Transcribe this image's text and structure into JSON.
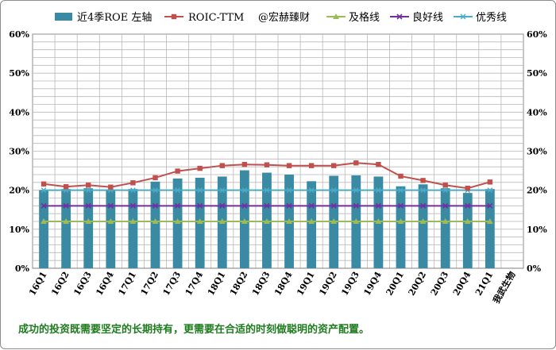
{
  "chart_data": {
    "type": "bar",
    "categories": [
      "16Q1",
      "16Q2",
      "16Q3",
      "16Q4",
      "17Q1",
      "17Q2",
      "17Q3",
      "17Q4",
      "18Q1",
      "18Q2",
      "18Q3",
      "18Q4",
      "19Q1",
      "19Q2",
      "19Q3",
      "19Q4",
      "20Q1",
      "20Q2",
      "20Q3",
      "20Q4",
      "21Q1"
    ],
    "series": [
      {
        "name": "近4季ROE 左轴",
        "kind": "bar",
        "color": "#3a8aa4",
        "values": [
          20.0,
          20.3,
          20.5,
          20.2,
          20.3,
          22.2,
          23.0,
          23.2,
          23.5,
          25.1,
          24.5,
          24.0,
          22.3,
          23.7,
          23.8,
          23.5,
          21.0,
          21.5,
          20.5,
          19.3,
          20.3
        ]
      },
      {
        "name": "ROIC-TTM",
        "kind": "line",
        "color": "#c0504d",
        "marker": "square",
        "values": [
          21.6,
          20.9,
          21.3,
          20.8,
          21.9,
          23.2,
          24.9,
          25.6,
          26.3,
          26.6,
          26.5,
          26.3,
          26.3,
          26.3,
          27.0,
          26.6,
          23.6,
          22.5,
          21.3,
          20.5,
          22.1
        ]
      },
      {
        "name": "及格线",
        "kind": "line",
        "color": "#9bbb59",
        "marker": "triangle",
        "values": [
          12,
          12,
          12,
          12,
          12,
          12,
          12,
          12,
          12,
          12,
          12,
          12,
          12,
          12,
          12,
          12,
          12,
          12,
          12,
          12,
          12
        ]
      },
      {
        "name": "良好线",
        "kind": "line",
        "color": "#7030a0",
        "marker": "x",
        "values": [
          16,
          16,
          16,
          16,
          16,
          16,
          16,
          16,
          16,
          16,
          16,
          16,
          16,
          16,
          16,
          16,
          16,
          16,
          16,
          16,
          16
        ]
      },
      {
        "name": "优秀线",
        "kind": "line",
        "color": "#4bacc6",
        "marker": "star",
        "values": [
          20,
          20,
          20,
          20,
          20,
          20,
          20,
          20,
          20,
          20,
          20,
          20,
          20,
          20,
          20,
          20,
          20,
          20,
          20,
          20,
          20
        ]
      }
    ],
    "y_ticks": [
      "0%",
      "10%",
      "20%",
      "30%",
      "40%",
      "50%",
      "60%"
    ],
    "ylim": [
      0,
      60
    ],
    "grid": true,
    "legend_position": "top",
    "watermark": "@宏赫臻财",
    "company_label": "我武生物"
  },
  "footer": {
    "text": "成功的投资既需要坚定的长期持有，更需要在合适的时刻做聪明的资产配置。"
  }
}
